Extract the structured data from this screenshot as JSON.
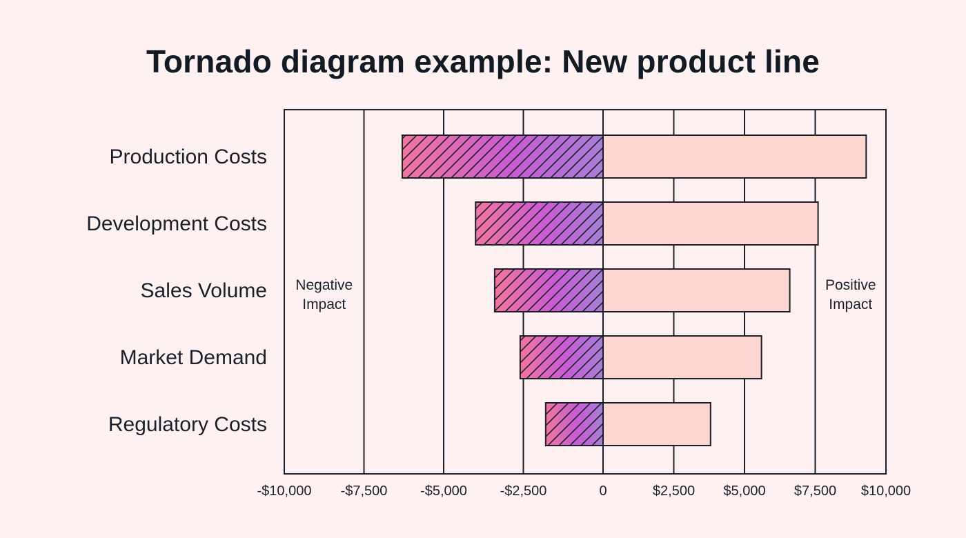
{
  "title": "Tornado diagram example: New product line",
  "chart_data": {
    "type": "bar",
    "orientation": "horizontal",
    "categories": [
      "Production Costs",
      "Development Costs",
      "Sales Volume",
      "Market Demand",
      "Regulatory Costs"
    ],
    "series": [
      {
        "values": [
          -6300,
          -4000,
          -3400,
          -2600,
          -1800
        ]
      },
      {
        "values": [
          9300,
          7600,
          6600,
          5600,
          3800
        ]
      }
    ],
    "x_ticks": [
      {
        "value": -10000,
        "label": "-$10,000"
      },
      {
        "value": -7500,
        "label": "-$7,500"
      },
      {
        "value": -5000,
        "label": "-$5,000"
      },
      {
        "value": -2500,
        "label": "-$2,500"
      },
      {
        "value": 0,
        "label": "0"
      },
      {
        "value": 2500,
        "label": "$2,500"
      },
      {
        "value": 5000,
        "label": "$5,000"
      },
      {
        "value": 7500,
        "label": "$7,500"
      },
      {
        "value": 10000,
        "label": "$10,000"
      }
    ],
    "xlim": [
      -10000,
      10000
    ],
    "annotations": {
      "negative": [
        "Negative",
        "Impact"
      ],
      "positive": [
        "Positive",
        "Impact"
      ]
    },
    "grid": true,
    "colors": {
      "negative_gradient": [
        "#f2759e",
        "#c85bd4",
        "#a77fd6"
      ],
      "positive_fill": "#fdd6d1",
      "outline": "#1b1f2a"
    }
  }
}
